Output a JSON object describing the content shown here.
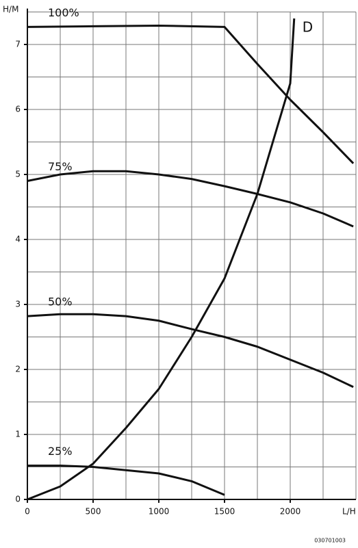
{
  "chart_data": {
    "type": "line",
    "y_label": "H/M",
    "x_label": "L/H",
    "footnote": "030701003",
    "xlim": [
      0,
      2500
    ],
    "ylim": [
      0,
      7.5
    ],
    "xticks": [
      0,
      500,
      1000,
      1500,
      2000
    ],
    "yticks": [
      0,
      1,
      2,
      3,
      4,
      5,
      6,
      7
    ],
    "xgrid": [
      250,
      500,
      750,
      1000,
      1250,
      1500,
      1750,
      2000,
      2250,
      2500
    ],
    "ygrid": [
      0.5,
      1,
      1.5,
      2,
      2.5,
      3,
      3.5,
      4,
      4.5,
      5,
      5.5,
      6,
      6.5,
      7,
      7.5
    ],
    "series": [
      {
        "name": "100%",
        "color": "#111111",
        "x": [
          0,
          500,
          1000,
          1500,
          1750,
          2000,
          2250,
          2480
        ],
        "values": [
          7.27,
          7.28,
          7.29,
          7.27,
          6.7,
          6.15,
          5.65,
          5.17
        ]
      },
      {
        "name": "75%",
        "color": "#111111",
        "x": [
          0,
          250,
          500,
          750,
          1000,
          1250,
          1500,
          1750,
          2000,
          2250,
          2480
        ],
        "values": [
          4.9,
          5.0,
          5.05,
          5.05,
          5.0,
          4.93,
          4.82,
          4.7,
          4.57,
          4.4,
          4.2
        ]
      },
      {
        "name": "50%",
        "color": "#111111",
        "x": [
          0,
          250,
          500,
          750,
          1000,
          1250,
          1500,
          1750,
          2000,
          2250,
          2480
        ],
        "values": [
          2.82,
          2.85,
          2.85,
          2.82,
          2.75,
          2.62,
          2.5,
          2.35,
          2.15,
          1.95,
          1.73
        ]
      },
      {
        "name": "25%",
        "color": "#111111",
        "x": [
          0,
          250,
          500,
          750,
          1000,
          1250,
          1500
        ],
        "values": [
          0.52,
          0.52,
          0.5,
          0.45,
          0.4,
          0.28,
          0.07
        ]
      },
      {
        "name": "D",
        "color": "#111111",
        "x": [
          0,
          250,
          500,
          750,
          1000,
          1250,
          1500,
          1750,
          2000,
          2030
        ],
        "values": [
          0,
          0.2,
          0.55,
          1.1,
          1.7,
          2.5,
          3.4,
          4.7,
          6.4,
          7.4
        ]
      }
    ]
  }
}
